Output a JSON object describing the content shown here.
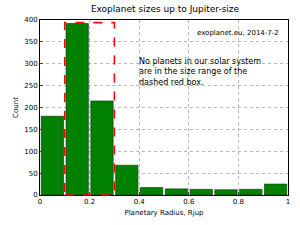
{
  "chart_data": {
    "type": "histogram",
    "title": "Exoplanet sizes up to Jupiter-size",
    "x_label": "Planetary Radius, Rjup",
    "y_label": "Count",
    "bins": [
      0,
      0.1,
      0.2,
      0.3,
      0.4,
      0.5,
      0.6,
      0.7,
      0.8,
      0.9,
      1.0
    ],
    "values": [
      180,
      392,
      215,
      68,
      17,
      14,
      13,
      12,
      13,
      25
    ],
    "color": "green",
    "xlim": [
      0,
      1
    ],
    "xticks": [
      0,
      0.2,
      0.4,
      0.6,
      0.8,
      1
    ],
    "ylim": [
      0,
      400
    ],
    "yticks": [
      0,
      50,
      100,
      150,
      200,
      250,
      300,
      350,
      400
    ],
    "grid": true,
    "highlight": {
      "x": [
        0.1,
        0.3
      ],
      "color": "red",
      "line_style": "dashed"
    },
    "annotations": [
      "exoplanet.eu, 2014-7-2",
      "No planets in our solar system\nare in the size range of the\ndashed red box."
    ]
  }
}
